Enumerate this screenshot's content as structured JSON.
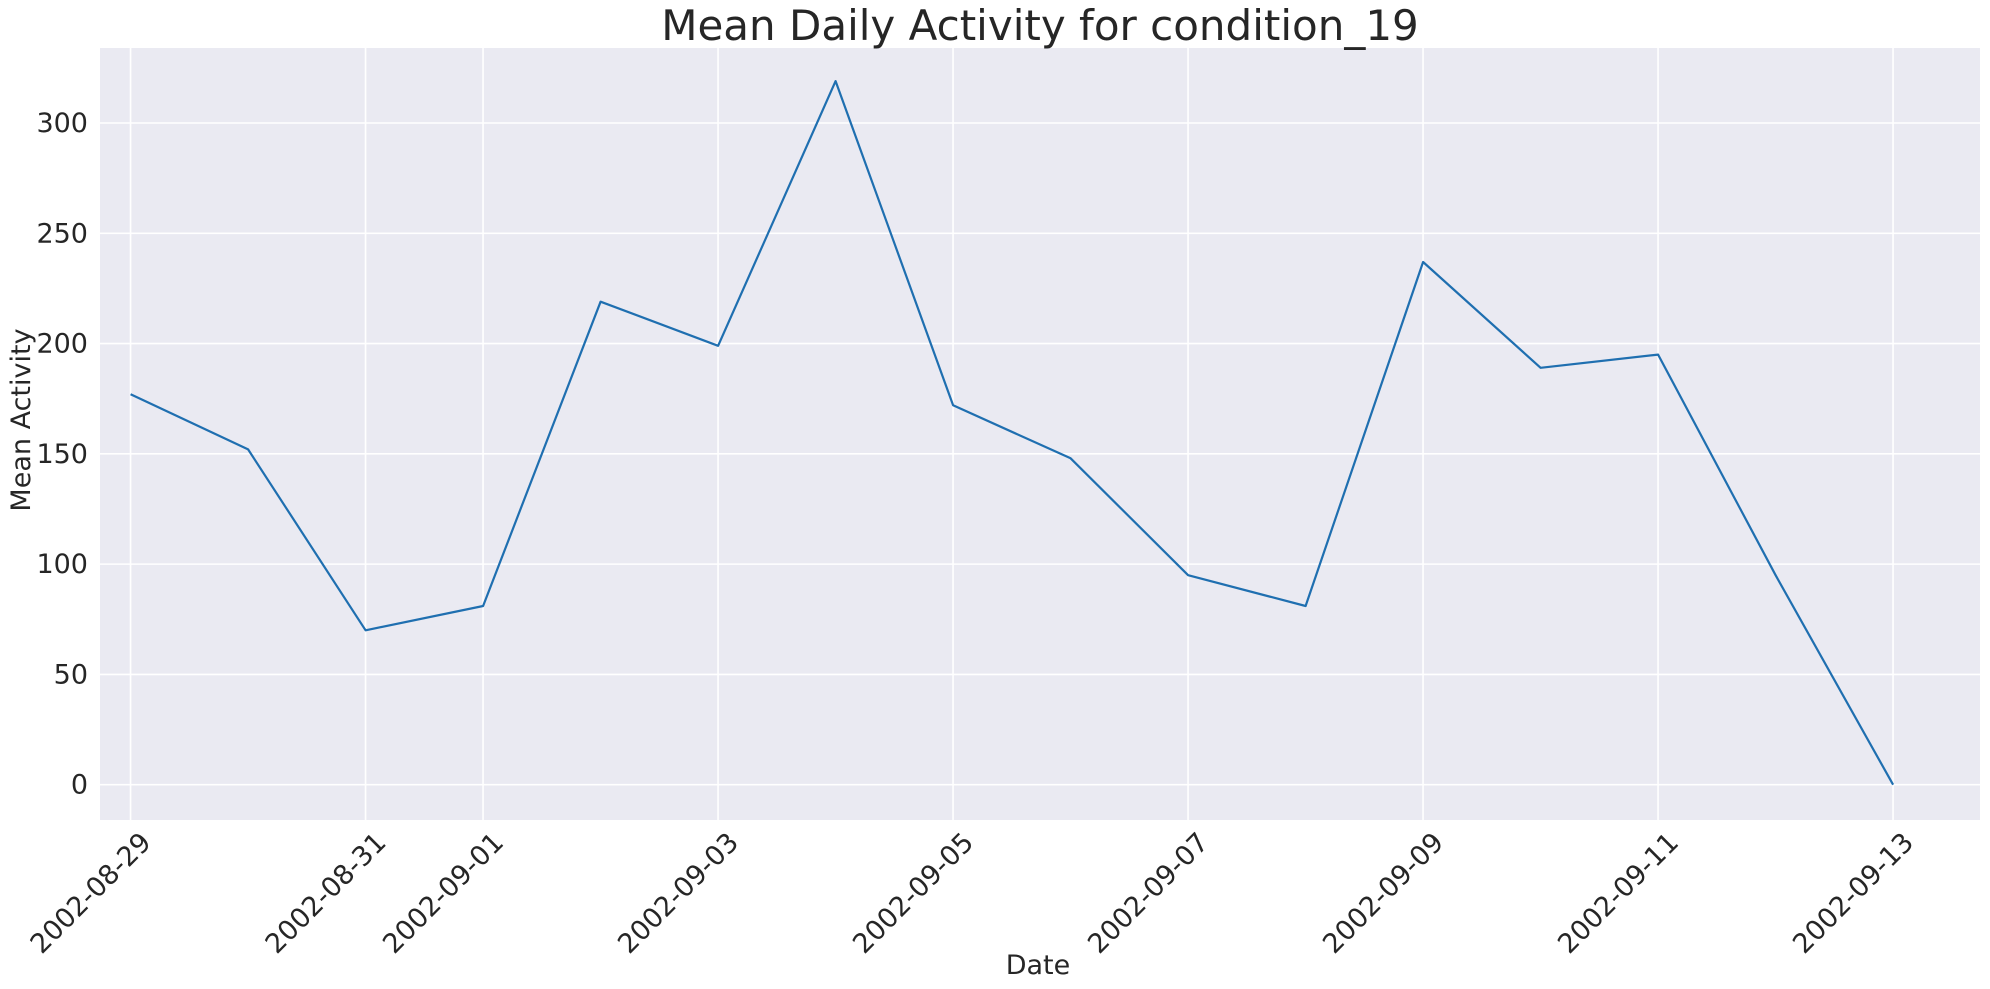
{
  "chart_data": {
    "type": "line",
    "title": "Mean Daily Activity for condition_19",
    "xlabel": "Date",
    "ylabel": "Mean Activity",
    "x": [
      "2002-08-29",
      "2002-08-30",
      "2002-08-31",
      "2002-09-01",
      "2002-09-02",
      "2002-09-03",
      "2002-09-04",
      "2002-09-05",
      "2002-09-06",
      "2002-09-07",
      "2002-09-08",
      "2002-09-09",
      "2002-09-10",
      "2002-09-11",
      "2002-09-12",
      "2002-09-13"
    ],
    "series": [
      {
        "values": [
          177,
          152,
          70,
          81,
          219,
          199,
          319,
          172,
          148,
          95,
          81,
          237,
          189,
          195,
          95,
          0
        ]
      }
    ],
    "x_tick_labels": [
      "2002-08-29",
      "2002-08-31",
      "2002-09-01",
      "2002-09-03",
      "2002-09-05",
      "2002-09-07",
      "2002-09-09",
      "2002-09-11",
      "2002-09-13"
    ],
    "y_ticks": [
      0,
      50,
      100,
      150,
      200,
      250,
      300
    ],
    "xlim": [
      "2002-08-28",
      "2002-09-13"
    ],
    "ylim": [
      -16,
      334
    ],
    "grid": true,
    "colors": {
      "line": "#1f6fb0",
      "plot_background": "#eaeaf2",
      "grid": "#ffffff"
    }
  }
}
